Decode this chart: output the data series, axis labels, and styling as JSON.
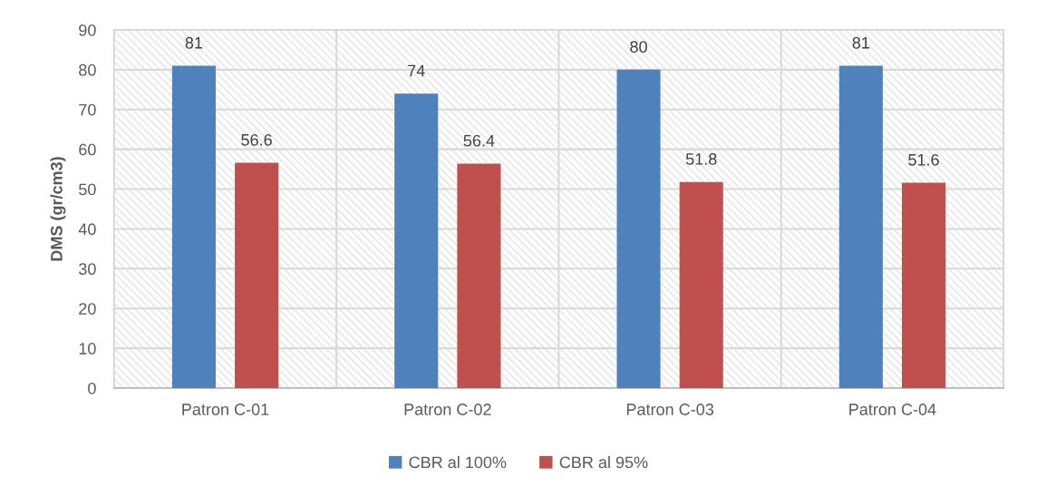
{
  "chart_data": {
    "type": "bar",
    "ylabel": "DMS (gr/cm3)",
    "categories": [
      "Patron C-01",
      "Patron C-02",
      "Patron C-03",
      "Patron C-04"
    ],
    "series": [
      {
        "name": "CBR al 100%",
        "color": "#4f81bd",
        "values": [
          81,
          74,
          80,
          81
        ]
      },
      {
        "name": "CBR al 95%",
        "color": "#c0504d",
        "values": [
          56.6,
          56.4,
          51.8,
          51.6
        ]
      }
    ],
    "ylim": [
      0,
      90
    ],
    "yticks": [
      0,
      10,
      20,
      30,
      40,
      50,
      60,
      70,
      80,
      90
    ],
    "grid": true,
    "legend": "bottom",
    "data_labels": true
  }
}
